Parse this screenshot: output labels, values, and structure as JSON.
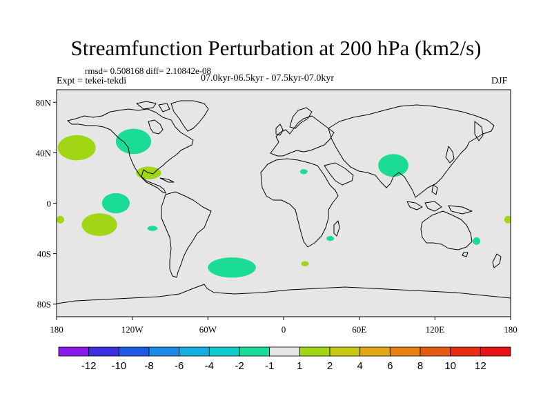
{
  "title": "Streamfunction Perturbation at 200 hPa (km2/s)",
  "stats": "rmsd= 0.508168 diff= 2.10842e-08",
  "experiment": "Expt = tekei-tekdi",
  "period": "07.0kyr-06.5kyr - 07.5kyr-07.0kyr",
  "season": "DJF",
  "map": {
    "lon_range": [
      -180,
      180
    ],
    "lat_range": [
      -90,
      90
    ],
    "lat_ticks": [
      {
        "lat": 80,
        "label": "80N"
      },
      {
        "lat": 40,
        "label": "40N"
      },
      {
        "lat": 0,
        "label": "0"
      },
      {
        "lat": -40,
        "label": "40S"
      },
      {
        "lat": -80,
        "label": "80S"
      }
    ],
    "lon_ticks": [
      {
        "lon": -180,
        "label": "180"
      },
      {
        "lon": -120,
        "label": "120W"
      },
      {
        "lon": -60,
        "label": "60W"
      },
      {
        "lon": 0,
        "label": "0"
      },
      {
        "lon": 60,
        "label": "60E"
      },
      {
        "lon": 120,
        "label": "120E"
      },
      {
        "lon": 180,
        "label": "180"
      }
    ],
    "background_color": "#e6e6e6",
    "anomalies": [
      {
        "name": "north-pacific-positive",
        "sign": "positive",
        "color": "#a0d614",
        "center_lon": -164,
        "center_lat": 44,
        "half_width_lon": 15,
        "half_height_lat": 10
      },
      {
        "name": "north-america-negative",
        "sign": "negative",
        "color": "#1adc96",
        "center_lon": -119,
        "center_lat": 49,
        "half_width_lon": 14,
        "half_height_lat": 10
      },
      {
        "name": "gulf-positive",
        "sign": "positive",
        "color": "#a0d614",
        "center_lon": -107,
        "center_lat": 24,
        "half_width_lon": 10,
        "half_height_lat": 5
      },
      {
        "name": "east-pacific-negative",
        "sign": "negative",
        "color": "#1adc96",
        "center_lon": -133,
        "center_lat": 0,
        "half_width_lon": 11,
        "half_height_lat": 8
      },
      {
        "name": "south-pacific-positive",
        "sign": "positive",
        "color": "#a0d614",
        "center_lon": -146,
        "center_lat": -17,
        "half_width_lon": 14,
        "half_height_lat": 9
      },
      {
        "name": "dateline-west-positive",
        "sign": "positive",
        "color": "#a0d614",
        "center_lon": -177,
        "center_lat": -13,
        "half_width_lon": 3,
        "half_height_lat": 3
      },
      {
        "name": "south-pacific-small-negative",
        "sign": "negative",
        "color": "#1adc96",
        "center_lon": -104,
        "center_lat": -20,
        "half_width_lon": 4,
        "half_height_lat": 2
      },
      {
        "name": "south-atlantic-negative",
        "sign": "negative",
        "color": "#1adc96",
        "center_lon": -41,
        "center_lat": -51,
        "half_width_lon": 19,
        "half_height_lat": 8
      },
      {
        "name": "south-africa-positive",
        "sign": "positive",
        "color": "#a0d614",
        "center_lon": 17,
        "center_lat": -48,
        "half_width_lon": 3,
        "half_height_lat": 2
      },
      {
        "name": "east-africa-negative",
        "sign": "negative",
        "color": "#1adc96",
        "center_lon": 37,
        "center_lat": -28,
        "half_width_lon": 3,
        "half_height_lat": 2
      },
      {
        "name": "sahara-negative",
        "sign": "negative",
        "color": "#1adc96",
        "center_lon": 16,
        "center_lat": 25,
        "half_width_lon": 3,
        "half_height_lat": 2
      },
      {
        "name": "tibet-negative",
        "sign": "negative",
        "color": "#1adc96",
        "center_lon": 87,
        "center_lat": 30,
        "half_width_lon": 12,
        "half_height_lat": 9
      },
      {
        "name": "east-australia-negative",
        "sign": "negative",
        "color": "#1adc96",
        "center_lon": 153,
        "center_lat": -30,
        "half_width_lon": 3,
        "half_height_lat": 3
      },
      {
        "name": "dateline-east-positive",
        "sign": "positive",
        "color": "#a0d614",
        "center_lon": 178,
        "center_lat": -13,
        "half_width_lon": 3,
        "half_height_lat": 3
      }
    ]
  },
  "colorbar": {
    "colors": [
      "#8a1ae8",
      "#3a2ee0",
      "#1e5ae6",
      "#1e8ae8",
      "#14aee0",
      "#10cccc",
      "#1adc96",
      "#e6e6e6",
      "#a0d614",
      "#c8c814",
      "#e0a814",
      "#e68214",
      "#e65a14",
      "#e62e14",
      "#e61414"
    ],
    "labels": [
      "-12",
      "-10",
      "-8",
      "-6",
      "-4",
      "-2",
      "-1",
      "1",
      "2",
      "4",
      "6",
      "8",
      "10",
      "12"
    ]
  }
}
